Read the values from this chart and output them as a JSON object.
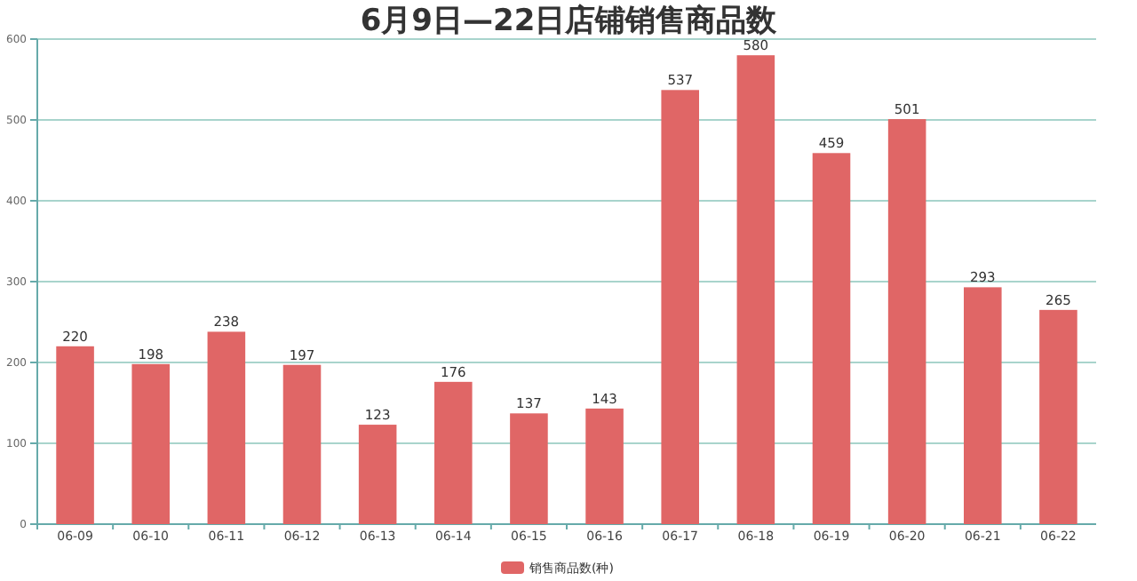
{
  "chart_data": {
    "type": "bar",
    "title": "6月9日—22日店铺销售商品数",
    "categories": [
      "06-09",
      "06-10",
      "06-11",
      "06-12",
      "06-13",
      "06-14",
      "06-15",
      "06-16",
      "06-17",
      "06-18",
      "06-19",
      "06-20",
      "06-21",
      "06-22"
    ],
    "series": [
      {
        "name": "销售商品数(种)",
        "color": "#e06666",
        "values": [
          220,
          198,
          238,
          197,
          123,
          176,
          137,
          143,
          537,
          580,
          459,
          501,
          293,
          265
        ]
      }
    ],
    "ylim": [
      0,
      600
    ],
    "yticks": [
      0,
      100,
      200,
      300,
      400,
      500,
      600
    ],
    "grid": "y",
    "legend": "bottom",
    "data_labels": true
  }
}
